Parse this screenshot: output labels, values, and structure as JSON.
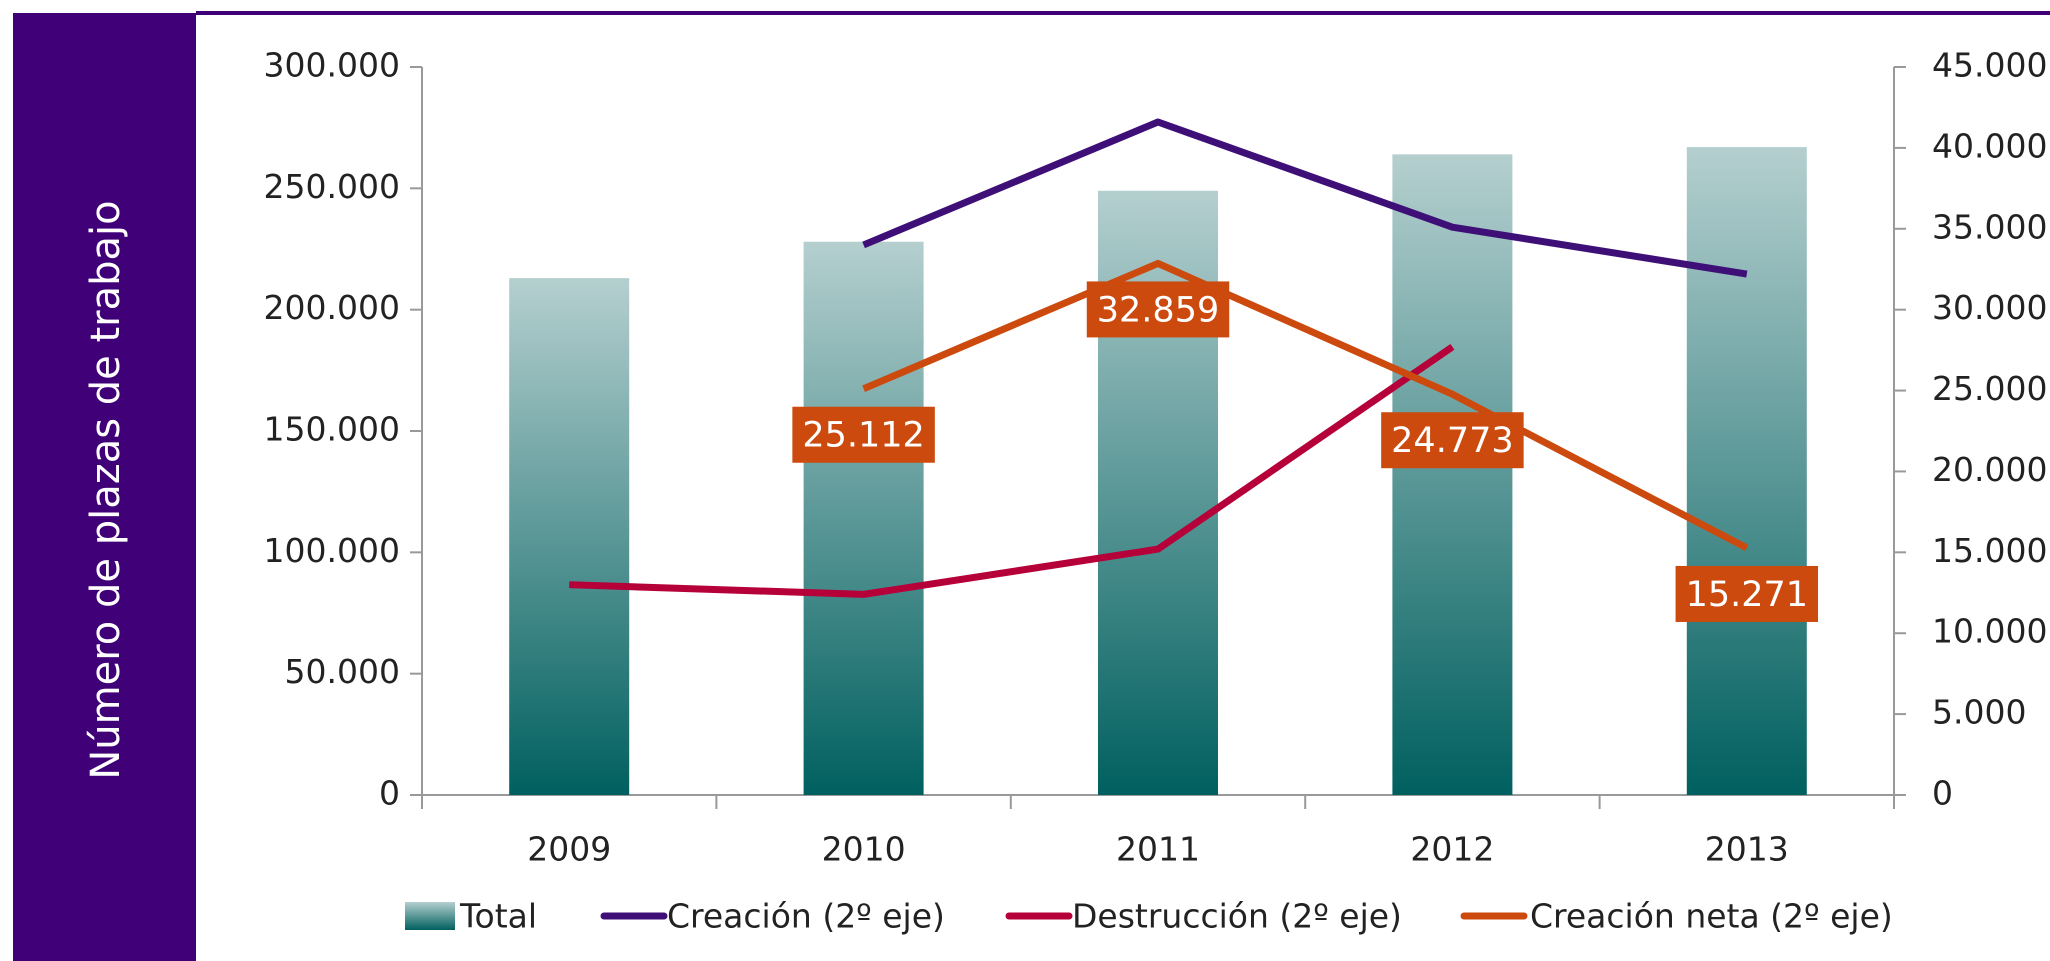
{
  "chart_data": {
    "type": "bar-line",
    "y_label": "Número de plazas de trabajo",
    "categories": [
      "2009",
      "2010",
      "2011",
      "2012",
      "2013"
    ],
    "series": [
      {
        "name": "Total",
        "type": "bar",
        "color": "#00605f",
        "color_top": "#b5cfcf",
        "values": [
          213000,
          228000,
          249000,
          264000,
          267000
        ]
      },
      {
        "name": "Creación (2º eje)",
        "type": "line",
        "axis": "y2",
        "color": "#3f0f78",
        "values": [
          null,
          34000,
          41600,
          35100,
          32200
        ]
      },
      {
        "name": "Destrucción (2º eje)",
        "type": "line",
        "axis": "y2",
        "color": "#b5003a",
        "values": [
          13000,
          12400,
          15200,
          27700,
          null
        ]
      },
      {
        "name": "Creación neta (2º eje)",
        "type": "line",
        "axis": "y2",
        "color": "#cc4a0e",
        "values": [
          null,
          25112,
          32859,
          24773,
          15271
        ],
        "value_labels": [
          null,
          "25.112",
          "32.859",
          "24.773",
          "15.271"
        ]
      }
    ],
    "ylim": [
      0,
      300000
    ],
    "yticks": [
      0,
      {
        "value": 50000,
        "label": "50.000"
      },
      {
        "value": 100000,
        "label": "100.000"
      },
      {
        "value": 150000,
        "label": "150.000"
      },
      {
        "value": 200000,
        "label": "200.000"
      },
      {
        "value": 250000,
        "label": "250.000"
      },
      {
        "value": 300000,
        "label": "300.000"
      }
    ],
    "y2lim": [
      0,
      45000
    ],
    "y2ticks": [
      0,
      {
        "value": 5000,
        "label": "5.000"
      },
      {
        "value": 10000,
        "label": "10.000"
      },
      {
        "value": 15000,
        "label": "15.000"
      },
      {
        "value": 20000,
        "label": "20.000"
      },
      {
        "value": 25000,
        "label": "25.000"
      },
      {
        "value": 30000,
        "label": "30.000"
      },
      {
        "value": 35000,
        "label": "35.000"
      },
      {
        "value": 40000,
        "label": "40.000"
      },
      {
        "value": 45000,
        "label": "45.000"
      }
    ],
    "legend": "bottom"
  }
}
